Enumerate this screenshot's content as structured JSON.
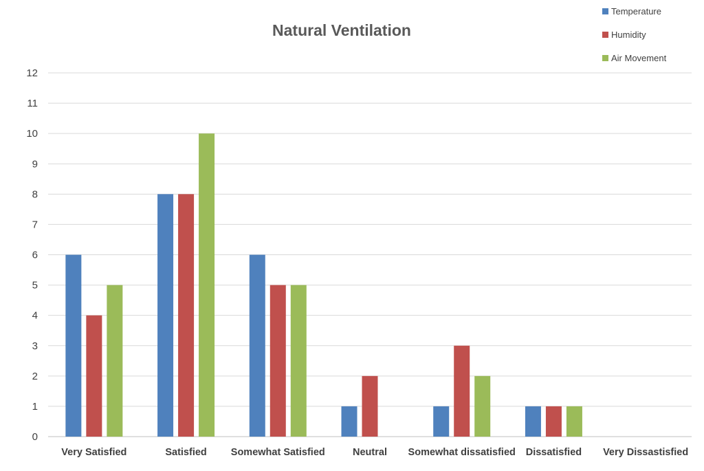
{
  "chart_data": {
    "type": "bar",
    "title": "Natural Ventilation",
    "xlabel": "",
    "ylabel": "",
    "categories": [
      "Very Satisfied",
      "Satisfied",
      "Somewhat Satisfied",
      "Neutral",
      "Somewhat dissatisfied",
      "Dissatisfied",
      "Very Dissastisfied"
    ],
    "series": [
      {
        "name": "Temperature",
        "color": "#4f81bd",
        "values": [
          6,
          8,
          6,
          1,
          1,
          1,
          0
        ]
      },
      {
        "name": "Humidity",
        "color": "#c0504d",
        "values": [
          4,
          8,
          5,
          2,
          3,
          1,
          0
        ]
      },
      {
        "name": "Air Movement",
        "color": "#9bbb59",
        "values": [
          5,
          10,
          5,
          0,
          2,
          1,
          0
        ]
      }
    ],
    "ylim": [
      0,
      12
    ],
    "yticks": [
      "0",
      "1",
      "2",
      "3",
      "4",
      "5",
      "6",
      "7",
      "8",
      "9",
      "10",
      "11",
      "12"
    ],
    "grid": true,
    "legend_position": "top-right"
  }
}
